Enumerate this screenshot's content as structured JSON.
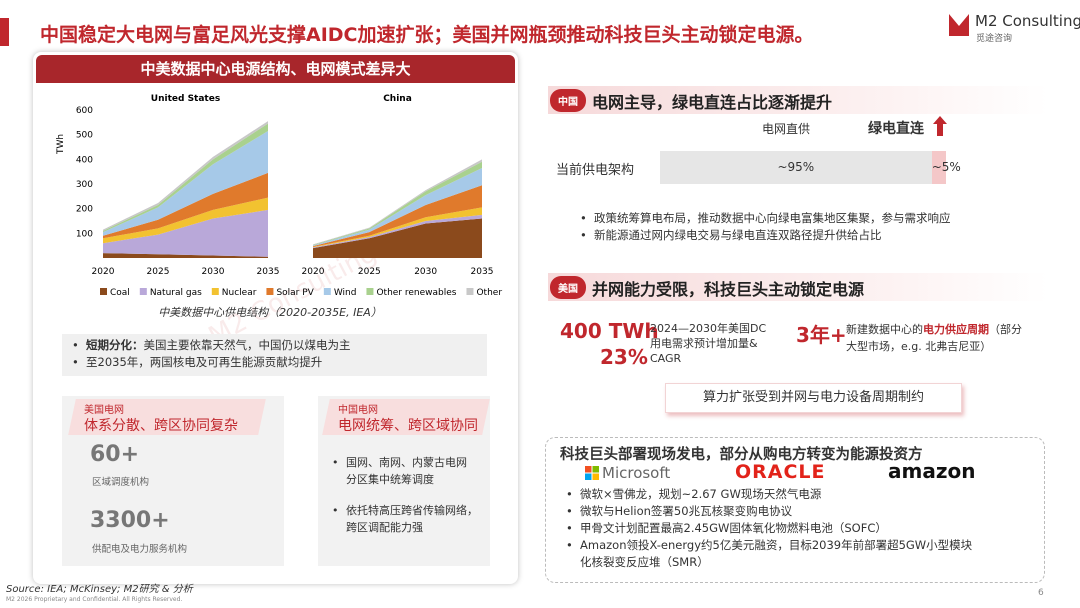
{
  "header": {
    "title": "中国稳定大电网与富足风光支撑AIDC加速扩张；美国并网瓶颈推动科技巨头主动锁定电源。",
    "logo": "M2 Consulting",
    "logo_sub": "觅途咨询"
  },
  "watermark": "M2 Consulting",
  "left_panel": {
    "title": "中美数据中心电源结构、电网模式差异大",
    "chart_caption": "中美数据中心供电结构（2020-2035E, IEA）",
    "bullets": [
      {
        "bold": "短期分化：",
        "text": "美国主要依靠天然气，中国仍以煤电为主"
      },
      {
        "bold": "",
        "text": "至2035年，两国核电及可再生能源贡献均提升"
      }
    ],
    "us_card": {
      "tag": "美国电网",
      "title": "体系分散、跨区协同复杂",
      "stats": [
        {
          "value": "60+",
          "label": "区域调度机构"
        },
        {
          "value": "3300+",
          "label": "供配电及电力服务机构"
        }
      ]
    },
    "china_card": {
      "tag": "中国电网",
      "title": "电网统筹、跨区域协同",
      "bullets": [
        "国网、南网、内蒙古电网\n分区集中统筹调度",
        "依托特高压跨省传输网络，\n跨区调配能力强"
      ]
    }
  },
  "chart_data": [
    {
      "type": "stacked_area",
      "title": "United States",
      "y_label": "TWh",
      "x": [
        2020,
        2025,
        2030,
        2035
      ],
      "xlim": [
        2020,
        2035
      ],
      "xticks": [
        2020,
        2025,
        2030,
        2035
      ],
      "ylim": [
        0,
        600
      ],
      "yticks": [
        100,
        200,
        300,
        400,
        500,
        600
      ],
      "series": [
        {
          "name": "Coal",
          "color": "#8b4a1c",
          "values": [
            20,
            15,
            10,
            5
          ]
        },
        {
          "name": "Natural gas",
          "color": "#b9a8d9",
          "values": [
            40,
            80,
            150,
            190
          ]
        },
        {
          "name": "Nuclear",
          "color": "#f2c230",
          "values": [
            20,
            25,
            35,
            50
          ]
        },
        {
          "name": "Solar PV",
          "color": "#e07a2c",
          "values": [
            10,
            35,
            65,
            100
          ]
        },
        {
          "name": "Wind",
          "color": "#a6c9e8",
          "values": [
            15,
            50,
            120,
            170
          ]
        },
        {
          "name": "Other renewables",
          "color": "#a9d18e",
          "values": [
            5,
            10,
            20,
            30
          ]
        },
        {
          "name": "Other",
          "color": "#c8c8c8",
          "values": [
            5,
            8,
            10,
            10
          ]
        }
      ]
    },
    {
      "type": "stacked_area",
      "title": "China",
      "x": [
        2020,
        2025,
        2030,
        2035
      ],
      "xlim": [
        2020,
        2035
      ],
      "xticks": [
        2020,
        2025,
        2030,
        2035
      ],
      "ylim": [
        0,
        600
      ],
      "series": [
        {
          "color": "#8b4a1c",
          "values": [
            40,
            80,
            140,
            160
          ]
        },
        {
          "color": "#b9a8d9",
          "values": [
            3,
            5,
            10,
            15
          ]
        },
        {
          "color": "#f2c230",
          "values": [
            2,
            5,
            15,
            30
          ]
        },
        {
          "color": "#e07a2c",
          "values": [
            3,
            15,
            50,
            90
          ]
        },
        {
          "color": "#a6c9e8",
          "values": [
            3,
            10,
            40,
            70
          ]
        },
        {
          "color": "#a9d18e",
          "values": [
            2,
            5,
            15,
            25
          ]
        },
        {
          "color": "#c8c8c8",
          "values": [
            2,
            3,
            5,
            10
          ]
        }
      ]
    }
  ],
  "china_section": {
    "tag": "中国",
    "title": "电网主导，绿电直连占比逐渐提升",
    "col_grid": "电网直供",
    "col_green": "绿电直连",
    "row_label": "当前供电架构",
    "bar": {
      "values": [
        95,
        5
      ],
      "value_labels": [
        "~95%",
        "~5%"
      ],
      "colors": [
        "#e6e6e6",
        "#f4c7c8"
      ]
    },
    "bullets": [
      "政策统筹算电布局，推动数据中心向绿电富集地区集聚，参与需求响应",
      "新能源通过网内绿电交易与绿电直连双路径提升供给占比"
    ]
  },
  "us_section": {
    "tag": "美国",
    "title": "并网能力受限，科技巨头主动锁定电源",
    "stat1": "400 TWh",
    "stat2": "23%",
    "stat_desc": "2024—2030年美国DC\n用电需求预计增加量&\nCAGR",
    "stat3": "3年+",
    "stat3_desc_pre": "新建数据中心的",
    "stat3_desc_hl": "电力供应周期",
    "stat3_desc_post": "（部分\n大型市场，e.g. 北弗吉尼亚）",
    "callout": "算力扩张受到并网与电力设备周期制约"
  },
  "tech_box": {
    "title": "科技巨头部署现场发电，部分从购电方转变为能源投资方",
    "logos": [
      "Microsoft",
      "ORACLE",
      "amazon"
    ],
    "bullets": [
      "微软×雪佛龙，规划~2.67 GW现场天然气电源",
      "微软与Helion签署50兆瓦核聚变购电协议",
      "甲骨文计划配置最高2.45GW固体氧化物燃料电池（SOFC）",
      "Amazon领投X-energy约5亿美元融资，目标2039年前部署超5GW小型模块\n化核裂变反应堆（SMR）"
    ]
  },
  "footer": {
    "source": "Source: IEA; McKinsey; M2研究 & 分析",
    "copyright": "M2 2026 Proprietary and Confidential. All Rights Reserved.",
    "page": "6"
  }
}
